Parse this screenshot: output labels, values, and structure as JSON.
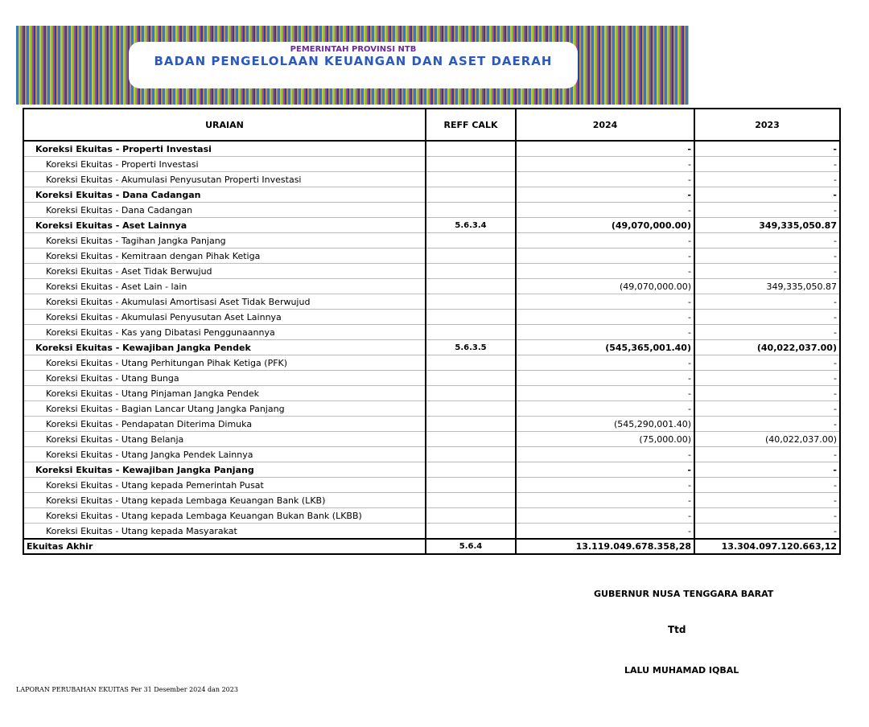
{
  "banner": {
    "line1": "PEMERINTAH PROVINSI NTB",
    "line2": "BADAN PENGELOLAAN KEUANGAN DAN ASET DAERAH"
  },
  "table": {
    "headers": [
      "URAIAN",
      "REFF CALK",
      "2024",
      "2023"
    ],
    "rows": [
      {
        "label": "Koreksi Ekuitas - Properti Investasi",
        "ref": "",
        "v2024": "-",
        "v2023": "-",
        "bold": true
      },
      {
        "label": "Koreksi Ekuitas - Properti Investasi",
        "ref": "",
        "v2024": "-",
        "v2023": "-"
      },
      {
        "label": "Koreksi Ekuitas - Akumulasi Penyusutan Properti Investasi",
        "ref": "",
        "v2024": "-",
        "v2023": "-"
      },
      {
        "label": "Koreksi Ekuitas - Dana Cadangan",
        "ref": "",
        "v2024": "-",
        "v2023": "-",
        "bold": true
      },
      {
        "label": "Koreksi Ekuitas - Dana Cadangan",
        "ref": "",
        "v2024": "-",
        "v2023": "-"
      },
      {
        "label": "Koreksi Ekuitas - Aset Lainnya",
        "ref": "5.6.3.4",
        "v2024": "(49,070,000.00)",
        "v2023": "349,335,050.87",
        "bold": true
      },
      {
        "label": "Koreksi Ekuitas - Tagihan Jangka Panjang",
        "ref": "",
        "v2024": "-",
        "v2023": "-"
      },
      {
        "label": "Koreksi Ekuitas - Kemitraan dengan Pihak Ketiga",
        "ref": "",
        "v2024": "-",
        "v2023": "-"
      },
      {
        "label": "Koreksi Ekuitas - Aset Tidak Berwujud",
        "ref": "",
        "v2024": "-",
        "v2023": "-"
      },
      {
        "label": "Koreksi Ekuitas - Aset Lain - lain",
        "ref": "",
        "v2024": "(49,070,000.00)",
        "v2023": "349,335,050.87"
      },
      {
        "label": "Koreksi Ekuitas - Akumulasi Amortisasi Aset Tidak Berwujud",
        "ref": "",
        "v2024": "-",
        "v2023": "-"
      },
      {
        "label": "Koreksi Ekuitas - Akumulasi Penyusutan Aset Lainnya",
        "ref": "",
        "v2024": "-",
        "v2023": "-"
      },
      {
        "label": "Koreksi Ekuitas - Kas yang Dibatasi Penggunaannya",
        "ref": "",
        "v2024": "-",
        "v2023": "-"
      },
      {
        "label": "Koreksi Ekuitas - Kewajiban Jangka Pendek",
        "ref": "5.6.3.5",
        "v2024": "(545,365,001.40)",
        "v2023": "(40,022,037.00)",
        "bold": true
      },
      {
        "label": "Koreksi Ekuitas - Utang Perhitungan Pihak Ketiga (PFK)",
        "ref": "",
        "v2024": "-",
        "v2023": "-"
      },
      {
        "label": "Koreksi Ekuitas - Utang Bunga",
        "ref": "",
        "v2024": "-",
        "v2023": "-"
      },
      {
        "label": "Koreksi Ekuitas - Utang Pinjaman Jangka Pendek",
        "ref": "",
        "v2024": "-",
        "v2023": "-"
      },
      {
        "label": "Koreksi Ekuitas - Bagian Lancar Utang Jangka Panjang",
        "ref": "",
        "v2024": "-",
        "v2023": "-"
      },
      {
        "label": "Koreksi Ekuitas - Pendapatan Diterima Dimuka",
        "ref": "",
        "v2024": "(545,290,001.40)",
        "v2023": "-"
      },
      {
        "label": "Koreksi Ekuitas - Utang Belanja",
        "ref": "",
        "v2024": "(75,000.00)",
        "v2023": "(40,022,037.00)"
      },
      {
        "label": "Koreksi Ekuitas - Utang Jangka Pendek Lainnya",
        "ref": "",
        "v2024": "-",
        "v2023": "-"
      },
      {
        "label": "Koreksi Ekuitas - Kewajiban Jangka Panjang",
        "ref": "",
        "v2024": "-",
        "v2023": "-",
        "bold": true
      },
      {
        "label": "Koreksi Ekuitas - Utang kepada Pemerintah Pusat",
        "ref": "",
        "v2024": "-",
        "v2023": "-"
      },
      {
        "label": "Koreksi Ekuitas - Utang kepada Lembaga Keuangan Bank (LKB)",
        "ref": "",
        "v2024": "-",
        "v2023": "-"
      },
      {
        "label": "Koreksi Ekuitas - Utang kepada Lembaga Keuangan Bukan Bank (LKBB)",
        "ref": "",
        "v2024": "-",
        "v2023": "-"
      },
      {
        "label": "Koreksi Ekuitas - Utang kepada Masyarakat",
        "ref": "",
        "v2024": "-",
        "v2023": "-"
      }
    ],
    "total": {
      "label": "Ekuitas Akhir",
      "ref": "5.6.4",
      "v2024": "13.119.049.678.358,28",
      "v2023": "13.304.097.120.663,12"
    }
  },
  "signature": {
    "title": "GUBERNUR NUSA TENGGARA BARAT",
    "ttd": "Ttd",
    "name": "LALU MUHAMAD IQBAL"
  },
  "footer": "LAPORAN PERUBAHAN EKUITAS Per 31 Desember 2024 dan 2023"
}
